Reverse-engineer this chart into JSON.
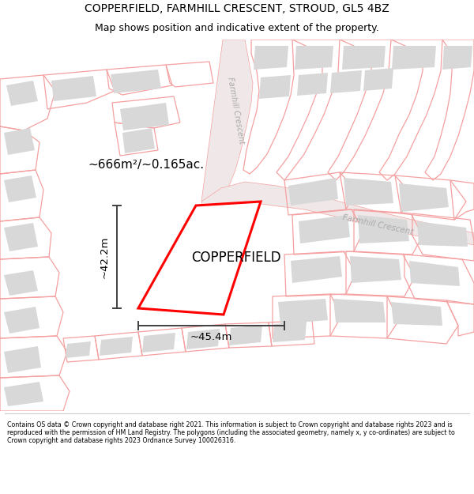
{
  "title": "COPPERFIELD, FARMHILL CRESCENT, STROUD, GL5 4BZ",
  "subtitle": "Map shows position and indicative extent of the property.",
  "footer": "Contains OS data © Crown copyright and database right 2021. This information is subject to Crown copyright and database rights 2023 and is reproduced with the permission of HM Land Registry. The polygons (including the associated geometry, namely x, y co-ordinates) are subject to Crown copyright and database rights 2023 Ordnance Survey 100026316.",
  "area_label": "~666m²/~0.165ac.",
  "property_name": "COPPERFIELD",
  "dim_vertical": "~42.2m",
  "dim_horizontal": "~45.4m",
  "road_label_vert": "Farmhill Crescent",
  "road_label_horiz": "Farmhill Crescent",
  "bg_color": "#ffffff",
  "plot_outline_color": "#ff0000",
  "plot_fill_color": "#ffffff",
  "building_fill": "#d8d8d8",
  "parcel_outline_color": "#f5a0a0",
  "road_fill_color": "#f0e8e8",
  "dim_line_color": "#404040",
  "road_text_color": "#aaaaaa",
  "title_fontsize": 10,
  "subtitle_fontsize": 9,
  "footer_fontsize": 5.7,
  "area_fontsize": 11,
  "property_fontsize": 12,
  "dim_fontsize": 9.5,
  "road_fontsize": 7
}
